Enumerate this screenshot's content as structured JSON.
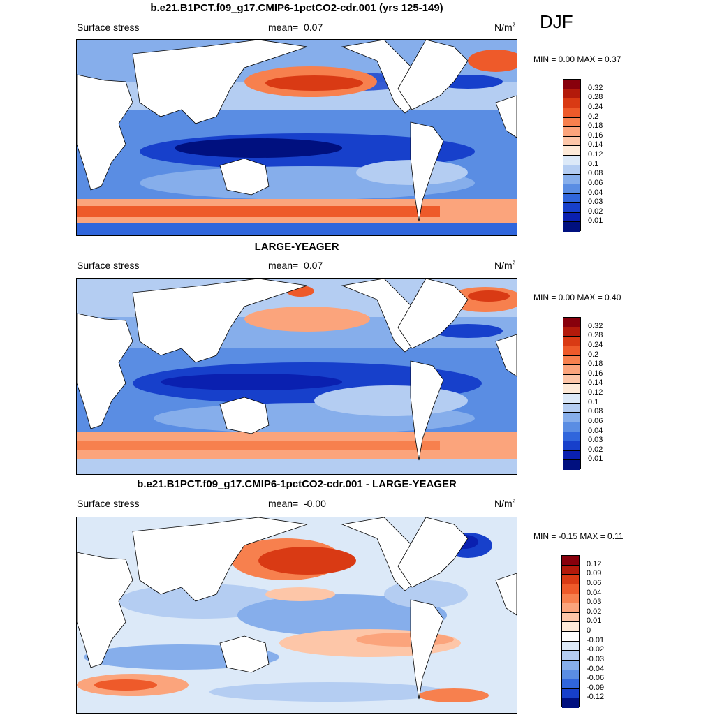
{
  "season": "DJF",
  "panels": [
    {
      "title": "b.e21.B1PCT.f09_g17.CMIP6-1pctCO2-cdr.001 (yrs 125-149)",
      "variable": "Surface stress",
      "mean_label": "mean=",
      "mean_value": "0.07",
      "units_base": "N/m",
      "units_exp": "2",
      "minmax": "MIN =   0.00 MAX =   0.37",
      "colorbar_ticks": [
        "0.32",
        "0.28",
        "0.24",
        "0.2",
        "0.18",
        "0.16",
        "0.14",
        "0.12",
        "0.1",
        "0.08",
        "0.06",
        "0.04",
        "0.03",
        "0.02",
        "0.01"
      ],
      "colors": [
        "#88000c",
        "#b31a0b",
        "#d93a14",
        "#ee5a2a",
        "#f7804e",
        "#fba47c",
        "#fdc6a8",
        "#feead8",
        "#dce9f8",
        "#b4cdf2",
        "#86aeeb",
        "#5a8de3",
        "#3066dc",
        "#1740cb",
        "#0a20b0",
        "#00107f"
      ]
    },
    {
      "title": "LARGE-YEAGER",
      "variable": "Surface stress",
      "mean_label": "mean=",
      "mean_value": "0.07",
      "units_base": "N/m",
      "units_exp": "2",
      "minmax": "MIN =   0.00 MAX =   0.40",
      "colorbar_ticks": [
        "0.32",
        "0.28",
        "0.24",
        "0.2",
        "0.18",
        "0.16",
        "0.14",
        "0.12",
        "0.1",
        "0.08",
        "0.06",
        "0.04",
        "0.03",
        "0.02",
        "0.01"
      ],
      "colors": [
        "#88000c",
        "#b31a0b",
        "#d93a14",
        "#ee5a2a",
        "#f7804e",
        "#fba47c",
        "#fdc6a8",
        "#feead8",
        "#dce9f8",
        "#b4cdf2",
        "#86aeeb",
        "#5a8de3",
        "#3066dc",
        "#1740cb",
        "#0a20b0",
        "#00107f"
      ]
    },
    {
      "title": "b.e21.B1PCT.f09_g17.CMIP6-1pctCO2-cdr.001 - LARGE-YEAGER",
      "variable": "Surface stress",
      "mean_label": "mean=",
      "mean_value": "-0.00",
      "units_base": "N/m",
      "units_exp": "2",
      "minmax": "MIN =  -0.15 MAX =   0.11",
      "colorbar_ticks": [
        "0.12",
        "0.09",
        "0.06",
        "0.04",
        "0.03",
        "0.02",
        "0.01",
        "0",
        "-0.01",
        "-0.02",
        "-0.03",
        "-0.04",
        "-0.06",
        "-0.09",
        "-0.12"
      ],
      "colors": [
        "#88000c",
        "#b31a0b",
        "#d93a14",
        "#ee5a2a",
        "#f7804e",
        "#fba47c",
        "#fdc6a8",
        "#feead8",
        "#ffffff",
        "#dce9f8",
        "#b4cdf2",
        "#86aeeb",
        "#5a8de3",
        "#3066dc",
        "#1740cb",
        "#00107f"
      ]
    }
  ]
}
